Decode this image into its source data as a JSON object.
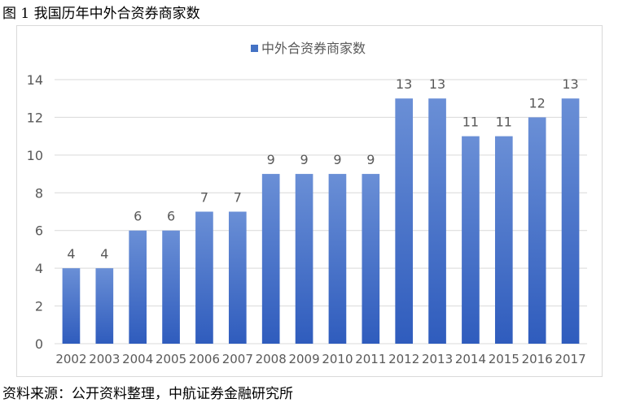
{
  "figure_title": "图 1  我国历年中外合资券商家数",
  "source": "资料来源：公开资料整理，中航证券金融研究所",
  "chart_data": {
    "type": "bar",
    "categories": [
      "2002",
      "2003",
      "2004",
      "2005",
      "2006",
      "2007",
      "2008",
      "2009",
      "2010",
      "2011",
      "2012",
      "2013",
      "2014",
      "2015",
      "2016",
      "2017"
    ],
    "series": [
      {
        "name": "中外合资券商家数",
        "values": [
          4,
          4,
          6,
          6,
          7,
          7,
          9,
          9,
          9,
          9,
          13,
          13,
          11,
          11,
          12,
          13
        ]
      }
    ],
    "title": "",
    "xlabel": "",
    "ylabel": "",
    "ylim": [
      0,
      14
    ],
    "yticks": [
      0,
      2,
      4,
      6,
      8,
      10,
      12,
      14
    ],
    "legend_position": "top",
    "grid": true,
    "data_labels": true,
    "colors": {
      "bar_top": "#6a8fd6",
      "bar_bottom": "#2f5cbd",
      "grid": "#d9d9d9",
      "axis_text": "#595959"
    }
  }
}
